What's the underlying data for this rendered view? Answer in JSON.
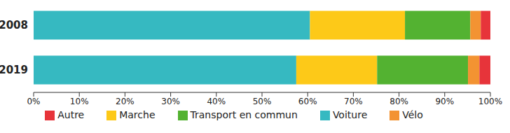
{
  "chart_data": {
    "type": "bar",
    "orientation": "horizontal",
    "stacked": true,
    "categories": [
      "2008",
      "2019"
    ],
    "series": [
      {
        "name": "Voiture",
        "color": "#36b9c1",
        "values": [
          60.5,
          57.5
        ]
      },
      {
        "name": "Marche",
        "color": "#fdc918",
        "values": [
          20.8,
          17.7
        ]
      },
      {
        "name": "Transport en commun",
        "color": "#53b231",
        "values": [
          14.3,
          19.9
        ]
      },
      {
        "name": "Vélo",
        "color": "#f39332",
        "values": [
          2.3,
          2.5
        ]
      },
      {
        "name": "Autre",
        "color": "#e7343a",
        "values": [
          2.1,
          2.4
        ]
      }
    ],
    "xlim": [
      0,
      100
    ],
    "xticks": [
      {
        "value": 0,
        "label": "0%"
      },
      {
        "value": 10,
        "label": "10%"
      },
      {
        "value": 20,
        "label": "20%"
      },
      {
        "value": 30,
        "label": "30%"
      },
      {
        "value": 40,
        "label": "40%"
      },
      {
        "value": 50,
        "label": "50%"
      },
      {
        "value": 60,
        "label": "60%"
      },
      {
        "value": 70,
        "label": "70%"
      },
      {
        "value": 80,
        "label": "80%"
      },
      {
        "value": 90,
        "label": "90%"
      },
      {
        "value": 100,
        "label": "100%"
      }
    ],
    "grid": false,
    "legend": "bottom"
  }
}
